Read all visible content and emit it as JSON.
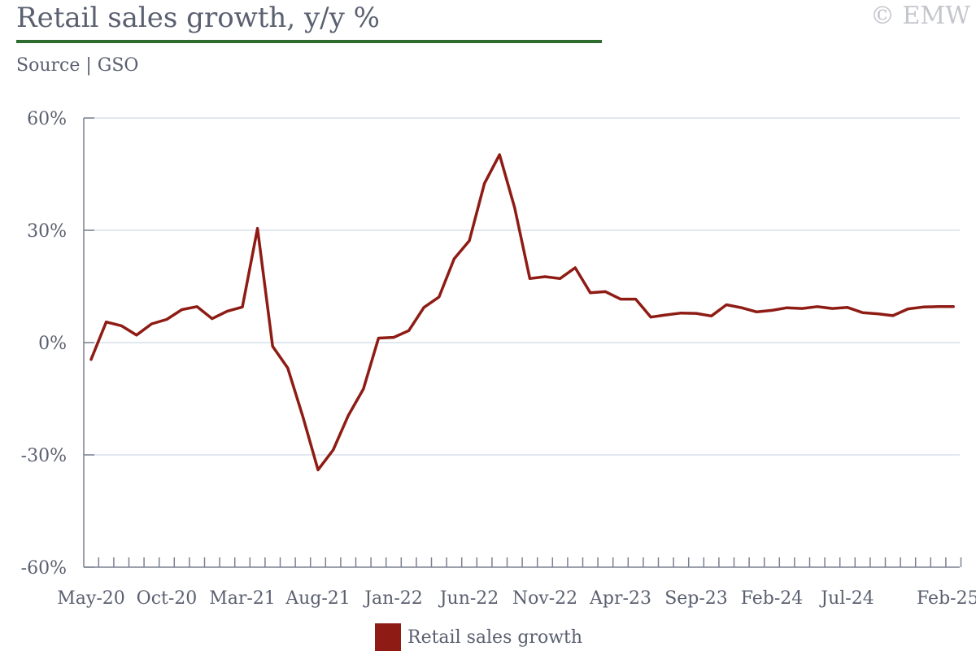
{
  "header": {
    "title": "Retail sales growth, y/y %",
    "source": "Source | GSO",
    "watermark": "© EMW"
  },
  "colors": {
    "series": "#8e1c15",
    "title_rule": "#2e6b2e",
    "grid": "#d5e0ec",
    "axis": "#7a8090",
    "text": "#5a6070"
  },
  "chart_data": {
    "type": "line",
    "ylim": [
      -60,
      60
    ],
    "yticks": [
      60,
      30,
      0,
      -30,
      -60
    ],
    "ytick_labels": [
      "60%",
      "30%",
      "0%",
      "-30%",
      "-60%"
    ],
    "xtick_labels": [
      "May-20",
      "Oct-20",
      "Mar-21",
      "Aug-21",
      "Jan-22",
      "Jun-22",
      "Nov-22",
      "Apr-23",
      "Sep-23",
      "Feb-24",
      "Jul-24",
      "Feb-25"
    ],
    "xtick_label_index": [
      0,
      5,
      10,
      15,
      20,
      25,
      30,
      35,
      40,
      45,
      50,
      57
    ],
    "grid": true,
    "legend": "bottom-center",
    "series": [
      {
        "name": "Retail sales growth",
        "x": [
          "May-20",
          "Jun-20",
          "Jul-20",
          "Aug-20",
          "Sep-20",
          "Oct-20",
          "Nov-20",
          "Dec-20",
          "Jan-21",
          "Feb-21",
          "Mar-21",
          "Apr-21",
          "May-21",
          "Jun-21",
          "Jul-21",
          "Aug-21",
          "Sep-21",
          "Oct-21",
          "Nov-21",
          "Dec-21",
          "Jan-22",
          "Feb-22",
          "Mar-22",
          "Apr-22",
          "May-22",
          "Jun-22",
          "Jul-22",
          "Aug-22",
          "Sep-22",
          "Oct-22",
          "Nov-22",
          "Dec-22",
          "Jan-23",
          "Feb-23",
          "Mar-23",
          "Apr-23",
          "May-23",
          "Jun-23",
          "Jul-23",
          "Aug-23",
          "Sep-23",
          "Oct-23",
          "Nov-23",
          "Dec-23",
          "Jan-24",
          "Feb-24",
          "Mar-24",
          "Apr-24",
          "May-24",
          "Jun-24",
          "Jul-24",
          "Aug-24",
          "Sep-24",
          "Oct-24",
          "Nov-24",
          "Dec-24",
          "Jan-25",
          "Feb-25"
        ],
        "values": [
          -4.5,
          5.5,
          4.5,
          2.0,
          5.0,
          6.2,
          8.8,
          9.6,
          6.4,
          8.4,
          9.5,
          30.5,
          -1.0,
          -6.8,
          -19.8,
          -34.0,
          -28.7,
          -19.5,
          -12.4,
          1.2,
          1.4,
          3.2,
          9.4,
          12.2,
          22.4,
          27.2,
          42.5,
          50.2,
          36.0,
          17.1,
          17.6,
          17.1,
          20.0,
          13.3,
          13.6,
          11.6,
          11.6,
          6.8,
          7.4,
          7.9,
          7.8,
          7.1,
          10.1,
          9.3,
          8.2,
          8.6,
          9.3,
          9.1,
          9.6,
          9.1,
          9.4,
          8.0,
          7.7,
          7.2,
          9.0,
          9.5,
          9.6,
          9.6
        ]
      }
    ]
  }
}
